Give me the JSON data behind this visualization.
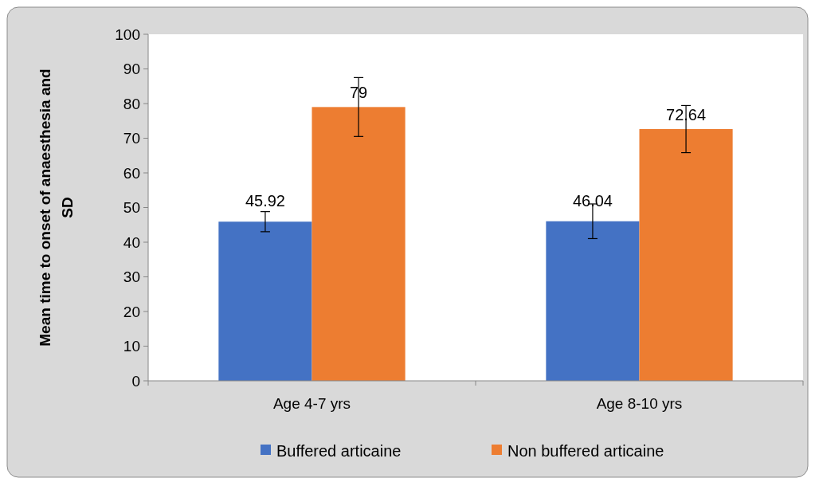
{
  "chart_data": {
    "type": "bar",
    "ylabel": "Mean time to onset of anaesthesia  and SD",
    "categories": [
      "Age  4-7 yrs",
      "Age 8-10 yrs"
    ],
    "series": [
      {
        "name": "Buffered articaine",
        "color": "#4472c4",
        "values": [
          45.92,
          46.04
        ],
        "errors": [
          2.9,
          5
        ]
      },
      {
        "name": "Non buffered articaine",
        "color": "#ed7d31",
        "values": [
          79,
          72.64
        ],
        "errors": [
          8.5,
          6.8
        ]
      }
    ],
    "ylim": [
      0,
      100
    ],
    "yticks": [
      0,
      10,
      20,
      30,
      40,
      50,
      60,
      70,
      80,
      90,
      100
    ],
    "data_labels": true,
    "legend": "bottom",
    "grid": false
  }
}
